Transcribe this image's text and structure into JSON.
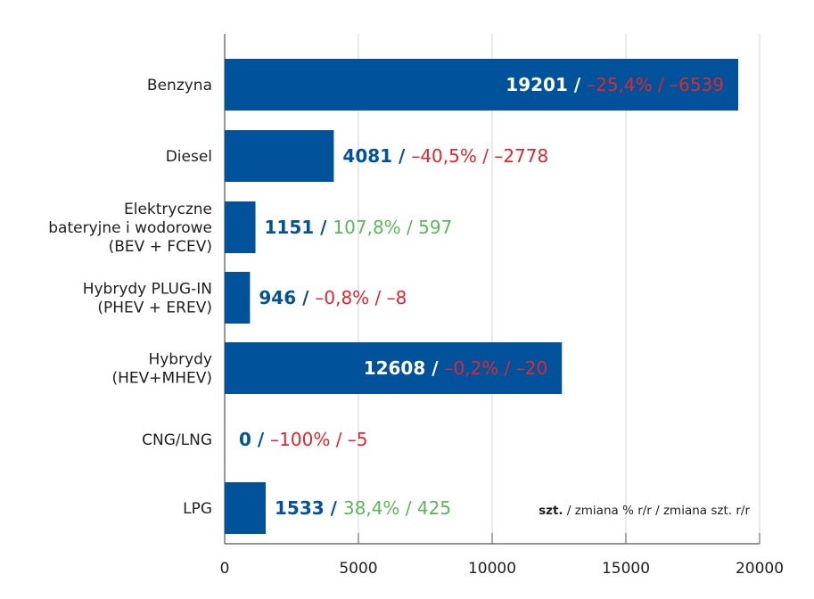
{
  "chart_data": {
    "type": "bar",
    "orientation": "horizontal",
    "categories": [
      [
        "Benzyna"
      ],
      [
        "Diesel"
      ],
      [
        "Elektryczne",
        "bateryjne i wodorowe",
        "(BEV + FCEV)"
      ],
      [
        "Hybrydy PLUG-IN",
        "(PHEV + EREV)"
      ],
      [
        "Hybrydy",
        "(HEV+MHEV)"
      ],
      [
        "CNG/LNG"
      ],
      [
        "LPG"
      ]
    ],
    "values": [
      19201,
      4081,
      1151,
      946,
      12608,
      0,
      1533
    ],
    "change_pct": [
      "–25,4%",
      "–40,5%",
      "107,8%",
      "–0,8%",
      "–0,2%",
      "–100%",
      "38,4%"
    ],
    "change_units": [
      "–6539",
      "–2778",
      "597",
      "–8",
      "–20",
      "–5",
      "425"
    ],
    "change_positive": [
      false,
      false,
      true,
      false,
      false,
      false,
      true
    ],
    "xlim": [
      0,
      20000
    ],
    "xticks": [
      "0",
      "5000",
      "10000",
      "15000",
      "20000"
    ],
    "grid": true,
    "legend_note": {
      "bold": "szt.",
      "rest": " / zmiana % r/r / zmiana szt. r/r"
    },
    "colors": {
      "bar": "#00529b",
      "negative": "#e3262e",
      "positive": "#5bb75a",
      "grid": "#d6d6d6",
      "axis": "#555555"
    }
  }
}
